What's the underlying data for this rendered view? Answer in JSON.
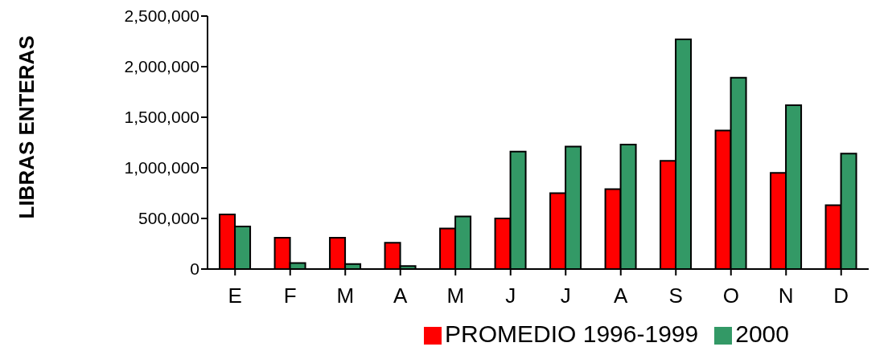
{
  "chart_data": {
    "type": "bar",
    "ylabel": "LIBRAS ENTERAS",
    "categories": [
      "E",
      "F",
      "M",
      "A",
      "M",
      "J",
      "J",
      "A",
      "S",
      "O",
      "N",
      "D"
    ],
    "series": [
      {
        "name": "PROMEDIO 1996-1999",
        "color": "#ff0000",
        "values": [
          540000,
          310000,
          310000,
          260000,
          400000,
          500000,
          750000,
          790000,
          1070000,
          1370000,
          950000,
          630000
        ]
      },
      {
        "name": "2000",
        "color": "#339966",
        "values": [
          420000,
          60000,
          50000,
          30000,
          520000,
          1160000,
          1210000,
          1230000,
          2270000,
          1890000,
          1620000,
          1140000
        ]
      }
    ],
    "ylim": [
      0,
      2500000
    ],
    "yticks": [
      {
        "value": 0,
        "label": "0"
      },
      {
        "value": 500000,
        "label": "500,000"
      },
      {
        "value": 1000000,
        "label": "1,000,000"
      },
      {
        "value": 1500000,
        "label": "1,500,000"
      },
      {
        "value": 2000000,
        "label": "2,000,000"
      },
      {
        "value": 2500000,
        "label": "2,500,000"
      }
    ],
    "grid": false,
    "legend": "bottom"
  }
}
